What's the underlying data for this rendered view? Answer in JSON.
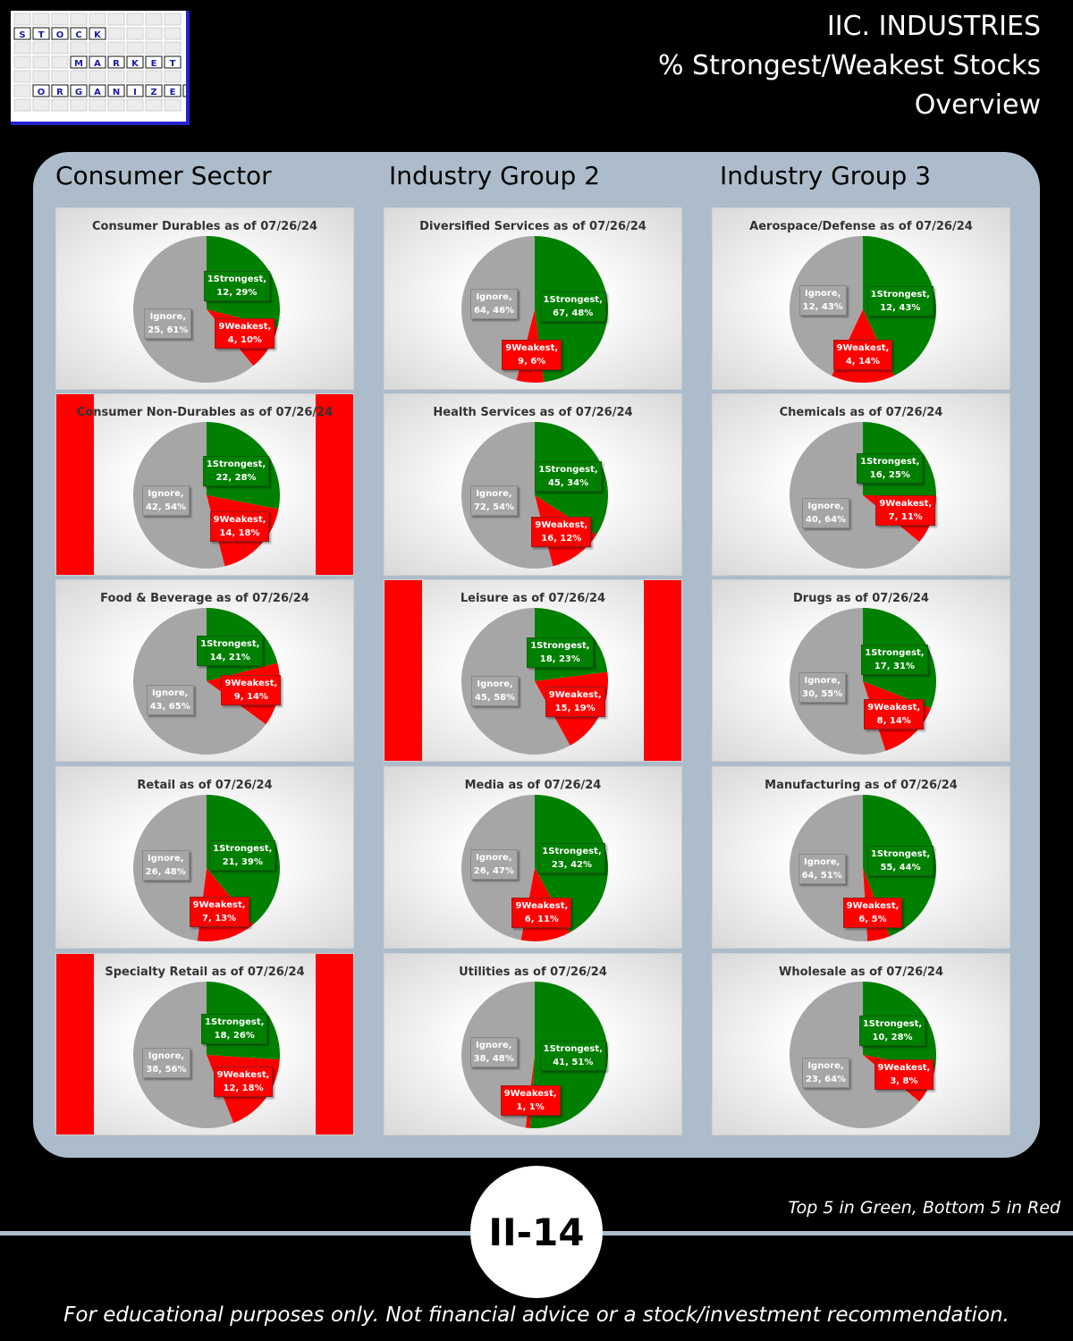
{
  "logo": {
    "rows": [
      [
        "S",
        "T",
        "O",
        "C",
        "K"
      ],
      [
        "M",
        "A",
        "R",
        "K",
        "E",
        "T"
      ],
      [
        "O",
        "R",
        "G",
        "A",
        "N",
        "I",
        "Z",
        "E",
        "R"
      ]
    ]
  },
  "header": {
    "line1": "IIC. INDUSTRIES",
    "line2": "% Strongest/Weakest Stocks",
    "line3": "Overview"
  },
  "columns": [
    "Consumer Sector",
    "Industry Group 2",
    "Industry Group 3"
  ],
  "colors": {
    "strongest": "#008000",
    "weakest": "#ff0000",
    "ignore": "#a6a6a6",
    "highlight": "#ff0000"
  },
  "chart_data": [
    {
      "type": "pie",
      "title": "Consumer Durables as of 07/26/24",
      "highlight": "none",
      "slices": [
        {
          "label": "1Strongest",
          "count": "12",
          "pct": "29%",
          "value": 29
        },
        {
          "label": "9Weakest",
          "count": "4",
          "pct": "10%",
          "value": 10
        },
        {
          "label": "Ignore",
          "count": "25",
          "pct": "61%",
          "value": 61
        }
      ]
    },
    {
      "type": "pie",
      "title": "Diversified Services as of 07/26/24",
      "highlight": "none",
      "slices": [
        {
          "label": "1Strongest",
          "count": "67",
          "pct": "48%",
          "value": 48
        },
        {
          "label": "9Weakest",
          "count": "9",
          "pct": "6%",
          "value": 6
        },
        {
          "label": "Ignore",
          "count": "64",
          "pct": "46%",
          "value": 46
        }
      ]
    },
    {
      "type": "pie",
      "title": "Aerospace/Defense as of 07/26/24",
      "highlight": "none",
      "slices": [
        {
          "label": "1Strongest",
          "count": "12",
          "pct": "43%",
          "value": 43
        },
        {
          "label": "9Weakest",
          "count": "4",
          "pct": "14%",
          "value": 14
        },
        {
          "label": "Ignore",
          "count": "12",
          "pct": "43%",
          "value": 43
        }
      ]
    },
    {
      "type": "pie",
      "title": "Consumer  Non-Durables  as of 07/26/24",
      "highlight": "red",
      "slices": [
        {
          "label": "1Strongest",
          "count": "22",
          "pct": "28%",
          "value": 28
        },
        {
          "label": "9Weakest",
          "count": "14",
          "pct": "18%",
          "value": 18
        },
        {
          "label": "Ignore",
          "count": "42",
          "pct": "54%",
          "value": 54
        }
      ]
    },
    {
      "type": "pie",
      "title": "Health Services as of 07/26/24",
      "highlight": "none",
      "slices": [
        {
          "label": "1Strongest",
          "count": "45",
          "pct": "34%",
          "value": 34
        },
        {
          "label": "9Weakest",
          "count": "16",
          "pct": "12%",
          "value": 12
        },
        {
          "label": "Ignore",
          "count": "72",
          "pct": "54%",
          "value": 54
        }
      ]
    },
    {
      "type": "pie",
      "title": "Chemicals as of 07/26/24",
      "highlight": "none",
      "slices": [
        {
          "label": "1Strongest",
          "count": "16",
          "pct": "25%",
          "value": 25
        },
        {
          "label": "9Weakest",
          "count": "7",
          "pct": "11%",
          "value": 11
        },
        {
          "label": "Ignore",
          "count": "40",
          "pct": "64%",
          "value": 64
        }
      ]
    },
    {
      "type": "pie",
      "title": "Food & Beverage as of 07/26/24",
      "highlight": "none",
      "slices": [
        {
          "label": "1Strongest",
          "count": "14",
          "pct": "21%",
          "value": 21
        },
        {
          "label": "9Weakest",
          "count": "9",
          "pct": "14%",
          "value": 14
        },
        {
          "label": "Ignore",
          "count": "43",
          "pct": "65%",
          "value": 65
        }
      ]
    },
    {
      "type": "pie",
      "title": "Leisure as of 07/26/24",
      "highlight": "red",
      "slices": [
        {
          "label": "1Strongest",
          "count": "18",
          "pct": "23%",
          "value": 23
        },
        {
          "label": "9Weakest",
          "count": "15",
          "pct": "19%",
          "value": 19
        },
        {
          "label": "Ignore",
          "count": "45",
          "pct": "58%",
          "value": 58
        }
      ]
    },
    {
      "type": "pie",
      "title": "Drugs as of 07/26/24",
      "highlight": "none",
      "slices": [
        {
          "label": "1Strongest",
          "count": "17",
          "pct": "31%",
          "value": 31
        },
        {
          "label": "9Weakest",
          "count": "8",
          "pct": "14%",
          "value": 14
        },
        {
          "label": "Ignore",
          "count": "30",
          "pct": "55%",
          "value": 55
        }
      ]
    },
    {
      "type": "pie",
      "title": "Retail as of 07/26/24",
      "highlight": "none",
      "slices": [
        {
          "label": "1Strongest",
          "count": "21",
          "pct": "39%",
          "value": 39
        },
        {
          "label": "9Weakest",
          "count": "7",
          "pct": "13%",
          "value": 13
        },
        {
          "label": "Ignore",
          "count": "26",
          "pct": "48%",
          "value": 48
        }
      ]
    },
    {
      "type": "pie",
      "title": "Media as of 07/26/24",
      "highlight": "none",
      "slices": [
        {
          "label": "1Strongest",
          "count": "23",
          "pct": "42%",
          "value": 42
        },
        {
          "label": "9Weakest",
          "count": "6",
          "pct": "11%",
          "value": 11
        },
        {
          "label": "Ignore",
          "count": "26",
          "pct": "47%",
          "value": 47
        }
      ]
    },
    {
      "type": "pie",
      "title": "Manufacturing as of 07/26/24",
      "highlight": "none",
      "slices": [
        {
          "label": "1Strongest",
          "count": "55",
          "pct": "44%",
          "value": 44
        },
        {
          "label": "9Weakest",
          "count": "6",
          "pct": "5%",
          "value": 5
        },
        {
          "label": "Ignore",
          "count": "64",
          "pct": "51%",
          "value": 51
        }
      ]
    },
    {
      "type": "pie",
      "title": "Specialty Retail as of 07/26/24",
      "highlight": "red",
      "slices": [
        {
          "label": "1Strongest",
          "count": "18",
          "pct": "26%",
          "value": 26
        },
        {
          "label": "9Weakest",
          "count": "12",
          "pct": "18%",
          "value": 18
        },
        {
          "label": "Ignore",
          "count": "38",
          "pct": "56%",
          "value": 56
        }
      ]
    },
    {
      "type": "pie",
      "title": "Utilities as of 07/26/24",
      "highlight": "none",
      "slices": [
        {
          "label": "1Strongest",
          "count": "41",
          "pct": "51%",
          "value": 51
        },
        {
          "label": "9Weakest",
          "count": "1",
          "pct": "1%",
          "value": 1
        },
        {
          "label": "Ignore",
          "count": "38",
          "pct": "48%",
          "value": 48
        }
      ]
    },
    {
      "type": "pie",
      "title": "Wholesale as of 07/26/24",
      "highlight": "none",
      "slices": [
        {
          "label": "1Strongest",
          "count": "10",
          "pct": "28%",
          "value": 28
        },
        {
          "label": "9Weakest",
          "count": "3",
          "pct": "8%",
          "value": 8
        },
        {
          "label": "Ignore",
          "count": "23",
          "pct": "64%",
          "value": 64
        }
      ]
    }
  ],
  "footer": {
    "note": "Top 5 in Green, Bottom 5 in Red",
    "page_badge": "II-14",
    "disclaimer": "For educational purposes only. Not financial advice or a stock/investment recommendation."
  }
}
